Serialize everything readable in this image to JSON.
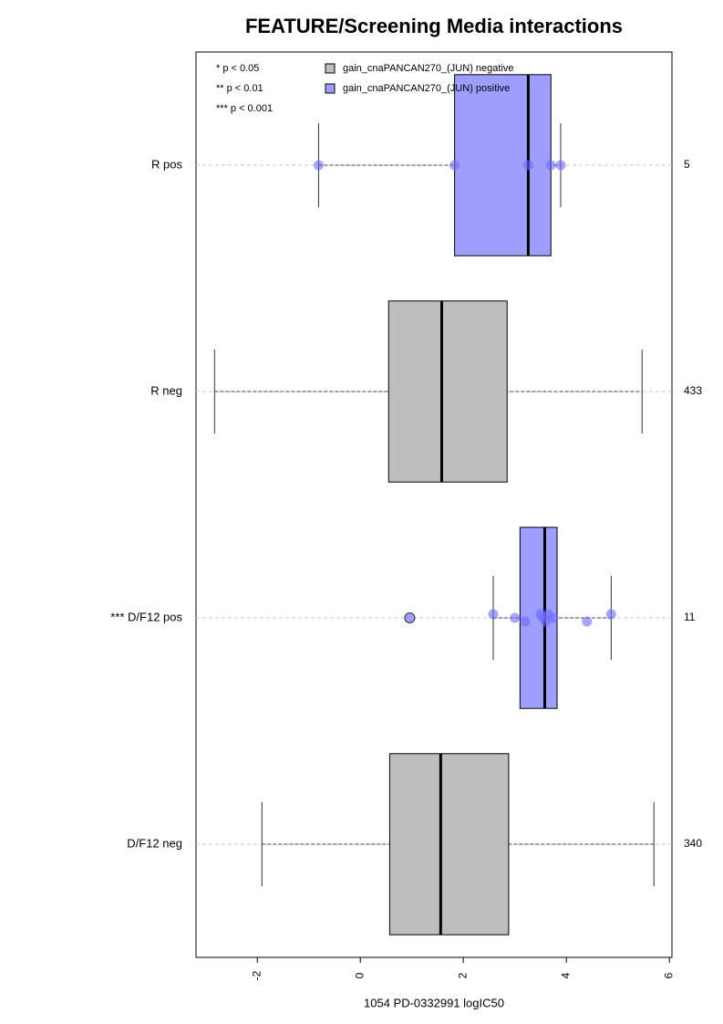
{
  "chart_data": {
    "type": "box",
    "title": "FEATURE/Screening Media interactions",
    "xlabel": "1054 PD-0332991 logIC50",
    "categories": [
      "R pos",
      "R neg",
      "*** D/F12 pos",
      "D/F12 neg"
    ],
    "counts": [
      5,
      433,
      11,
      340
    ],
    "significance_legend": [
      "* p < 0.05",
      "** p < 0.01",
      "*** p < 0.001"
    ],
    "series": [
      {
        "name": "gain_cnaPANCAN270_(JUN) negative",
        "color": "#bebebe",
        "point_color": "#a8a8a8",
        "values": [
          null,
          {
            "min": -2.83,
            "q1": 0.55,
            "median": 1.58,
            "q3": 2.85,
            "max": 5.47
          },
          null,
          {
            "min": -1.91,
            "q1": 0.57,
            "median": 1.56,
            "q3": 2.88,
            "max": 5.7
          }
        ]
      },
      {
        "name": "gain_cnaPANCAN270_(JUN) positive",
        "color": "#9e9eff",
        "point_color": "#6a6aff",
        "values": [
          {
            "min": -0.81,
            "q1": 1.83,
            "median": 3.26,
            "q3": 3.7,
            "max": 3.89,
            "points": [
              -0.81,
              1.83,
              3.26,
              3.7,
              3.89
            ]
          },
          null,
          {
            "min": 2.58,
            "q1": 3.1,
            "median": 3.58,
            "q3": 3.82,
            "max": 4.87,
            "outliers": [
              0.96
            ],
            "points": [
              2.58,
              3.0,
              3.2,
              3.5,
              3.55,
              3.6,
              3.65,
              3.75,
              4.4,
              4.87
            ]
          },
          null
        ]
      }
    ],
    "xlim": [
      -3.19,
      6.05
    ],
    "xticks": [
      -2,
      0,
      2,
      4,
      6
    ]
  }
}
